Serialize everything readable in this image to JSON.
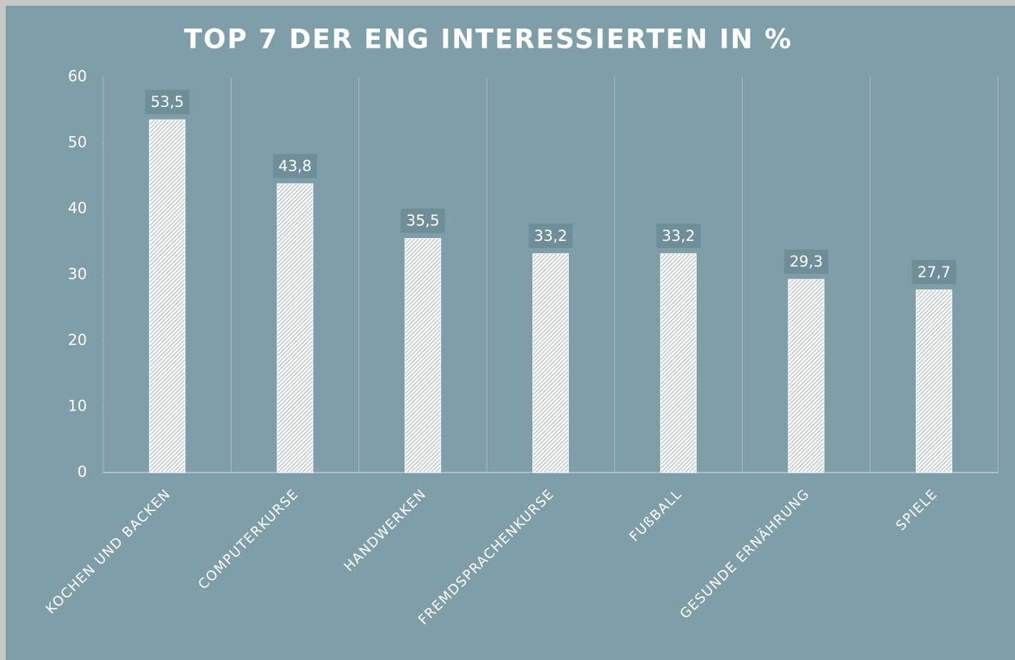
{
  "chart_data": {
    "type": "bar",
    "title": "TOP 7 DER ENG INTERESSIERTEN IN %",
    "categories": [
      "KOCHEN UND BACKEN",
      "COMPUTERKURSE",
      "HANDWERKEN",
      "FREMDSPRACHENKURSE",
      "FUßBALL",
      "GESUNDE ERNÄHRUNG",
      "SPIELE"
    ],
    "values": [
      53.5,
      43.8,
      35.5,
      33.2,
      33.2,
      29.3,
      27.7
    ],
    "value_labels": [
      "53,5",
      "43,8",
      "35,5",
      "33,2",
      "33,2",
      "29,3",
      "27,7"
    ],
    "color": "#ffffff",
    "ylim": [
      0,
      60
    ],
    "yticks": [
      0,
      10,
      20,
      30,
      40,
      50,
      60
    ],
    "grid": true
  }
}
